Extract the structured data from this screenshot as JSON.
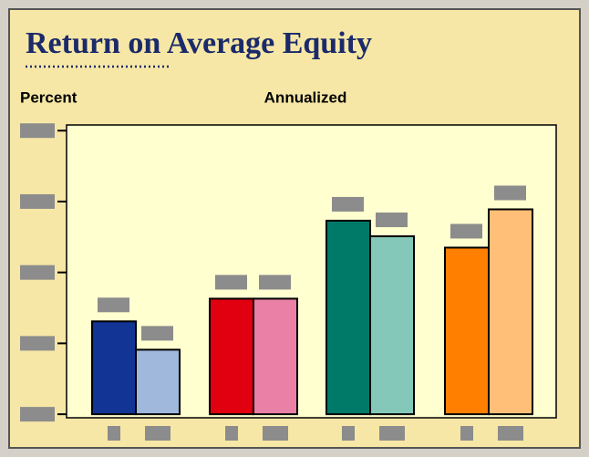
{
  "chart_data": {
    "type": "bar",
    "title": "Return on Average Equity",
    "y_label": "Percent",
    "subtitle": "Annualized",
    "categories": [
      null,
      null,
      null,
      null,
      null,
      null,
      null,
      null
    ],
    "values": [
      1.31,
      0.91,
      1.63,
      1.63,
      2.73,
      2.51,
      2.35,
      2.89
    ],
    "colors": [
      "#123595",
      "#9fb8dc",
      "#e00010",
      "#ea80a6",
      "#007a68",
      "#83c8b8",
      "#ff8000",
      "#ffbf78"
    ],
    "ylim": [
      -0.05,
      4.08
    ],
    "yticks": [
      0,
      1,
      2,
      3,
      4
    ]
  }
}
